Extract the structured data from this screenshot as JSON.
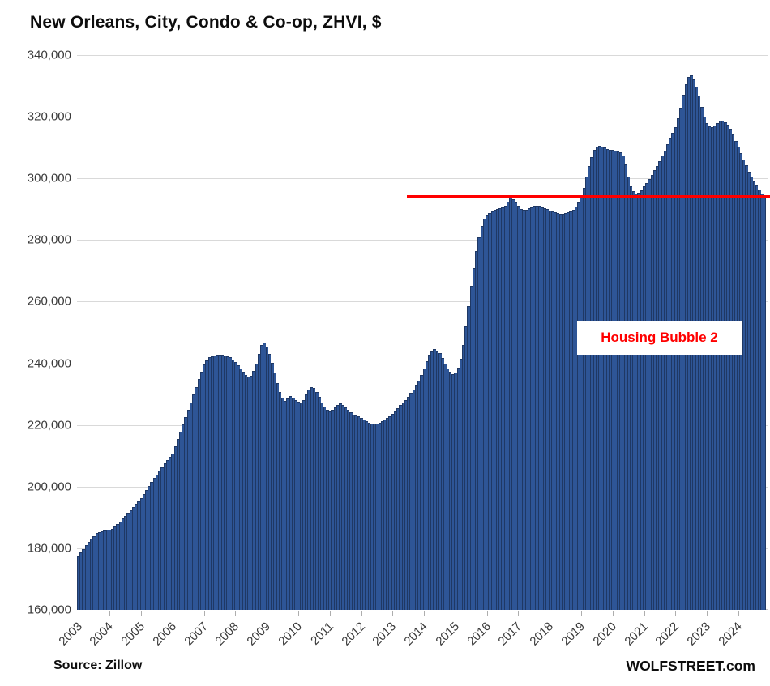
{
  "header": {
    "title": "New Orleans, City, Condo & Co-op, ZHVI, $"
  },
  "footer": {
    "source": "Source: Zillow",
    "brand": "WOLFSTREET.com"
  },
  "colors": {
    "bar_fill": "#2e5596",
    "bar_border": "#1f3864",
    "gridline": "#d9d9d9",
    "axis_line": "#c6c6c6",
    "tick": "#aeaeae",
    "reference_red": "#ff0000",
    "annotation_bg": "#ffffff"
  },
  "chart_data": {
    "type": "bar",
    "title": "New Orleans, City, Condo & Co-op, ZHVI, $",
    "xlabel": "",
    "ylabel": "ZHVI, $",
    "unit": "USD",
    "frequency": "monthly",
    "start": "2003-01",
    "end": "2024-11",
    "ylim": [
      160000,
      340000
    ],
    "grid": "horizontal",
    "legend": "none",
    "y_ticks": [
      {
        "value": 340000,
        "label": "340,000"
      },
      {
        "value": 320000,
        "label": "320,000"
      },
      {
        "value": 300000,
        "label": "300,000"
      },
      {
        "value": 280000,
        "label": "280,000"
      },
      {
        "value": 260000,
        "label": "260,000"
      },
      {
        "value": 240000,
        "label": "240,000"
      },
      {
        "value": 220000,
        "label": "220,000"
      },
      {
        "value": 200000,
        "label": "200,000"
      },
      {
        "value": 180000,
        "label": "180,000"
      },
      {
        "value": 160000,
        "label": "160,000"
      }
    ],
    "x_tick_labels": [
      "2003",
      "2004",
      "2005",
      "2006",
      "2007",
      "2008",
      "2009",
      "2010",
      "2011",
      "2012",
      "2013",
      "2014",
      "2015",
      "2016",
      "2017",
      "2018",
      "2019",
      "2020",
      "2021",
      "2022",
      "2023",
      "2024"
    ],
    "reference_line": {
      "label": "Housing Bubble 2",
      "value": 294000,
      "start_month_index": 126,
      "color": "#ff0000"
    },
    "series": [
      {
        "name": "ZHVI",
        "years": [
          {
            "year": 2003,
            "values": [
              177300,
              178700,
              179800,
              181000,
              182100,
              183100,
              183900,
              184900,
              185200,
              185600,
              185800,
              185900
            ]
          },
          {
            "year": 2004,
            "values": [
              186100,
              186400,
              187000,
              187800,
              188700,
              189600,
              190500,
              191400,
              192300,
              193300,
              194300,
              195300
            ]
          },
          {
            "year": 2005,
            "values": [
              196300,
              197500,
              198800,
              200200,
              201500,
              202800,
              204000,
              205200,
              206300,
              207500,
              208600,
              209700
            ]
          },
          {
            "year": 2006,
            "values": [
              210700,
              213000,
              215400,
              217800,
              220200,
              222600,
              225000,
              227400,
              229800,
              232200,
              234800,
              237300
            ]
          },
          {
            "year": 2007,
            "values": [
              239500,
              241000,
              242000,
              242300,
              242500,
              242700,
              242800,
              242700,
              242500,
              242300,
              242000,
              241300
            ]
          },
          {
            "year": 2008,
            "values": [
              240400,
              239300,
              238200,
              237200,
              236300,
              235600,
              236000,
              237500,
              240000,
              243000,
              245900,
              246800
            ]
          },
          {
            "year": 2009,
            "values": [
              245500,
              243000,
              240100,
              237000,
              233500,
              230800,
              228800,
              227900,
              228700,
              229400,
              228900,
              228100
            ]
          },
          {
            "year": 2010,
            "values": [
              227500,
              227300,
              228100,
              229800,
              231500,
              232300,
              231900,
              230600,
              229000,
              227400,
              225900,
              224900
            ]
          },
          {
            "year": 2011,
            "values": [
              224400,
              224800,
              225800,
              226600,
              227000,
              226600,
              225800,
              224800,
              224000,
              223400,
              223000,
              222700
            ]
          },
          {
            "year": 2012,
            "values": [
              222300,
              221700,
              221200,
              220800,
              220500,
              220400,
              220500,
              220800,
              221300,
              221800,
              222400,
              222900
            ]
          },
          {
            "year": 2013,
            "values": [
              223600,
              224500,
              225500,
              226400,
              227200,
              228100,
              229100,
              230300,
              231600,
              233000,
              234500,
              236200
            ]
          },
          {
            "year": 2014,
            "values": [
              238200,
              240600,
              242900,
              244200,
              244500,
              244100,
              243200,
              241700,
              240000,
              238400,
              237200,
              236600
            ]
          },
          {
            "year": 2015,
            "values": [
              237000,
              238500,
              241500,
              246000,
              252000,
              258500,
              265000,
              271000,
              276500,
              281000,
              284500,
              287000
            ]
          },
          {
            "year": 2016,
            "values": [
              288000,
              288800,
              289400,
              289800,
              290100,
              290300,
              290600,
              291200,
              292500,
              293800,
              293200,
              292200
            ]
          },
          {
            "year": 2017,
            "values": [
              291200,
              290200,
              289700,
              289900,
              290300,
              290700,
              291100,
              291200,
              291000,
              290700,
              290300,
              290000
            ]
          },
          {
            "year": 2018,
            "values": [
              289600,
              289300,
              289000,
              288800,
              288600,
              288500,
              288700,
              288900,
              289200,
              289800,
              290800,
              292200
            ]
          },
          {
            "year": 2019,
            "values": [
              294200,
              297000,
              300500,
              304000,
              307000,
              309300,
              310400,
              310600,
              310400,
              310000,
              309600,
              309300
            ]
          },
          {
            "year": 2020,
            "values": [
              309200,
              309000,
              308800,
              308500,
              307500,
              304500,
              300500,
              297500,
              295800,
              295000,
              295300,
              296200
            ]
          },
          {
            "year": 2021,
            "values": [
              297400,
              298500,
              299800,
              301200,
              302600,
              304100,
              305600,
              307300,
              309100,
              311000,
              312900,
              314800
            ]
          },
          {
            "year": 2022,
            "values": [
              316600,
              319500,
              323000,
              327000,
              330500,
              333000,
              333400,
              332200,
              329800,
              326800,
              323200,
              320000
            ]
          },
          {
            "year": 2023,
            "values": [
              318000,
              316800,
              316600,
              317200,
              318000,
              318600,
              318600,
              318200,
              317400,
              316000,
              314200,
              312200
            ]
          },
          {
            "year": 2024,
            "values": [
              310200,
              308200,
              306200,
              304200,
              302200,
              300500,
              299000,
              297600,
              296300,
              295200,
              294400
            ]
          }
        ]
      }
    ]
  }
}
